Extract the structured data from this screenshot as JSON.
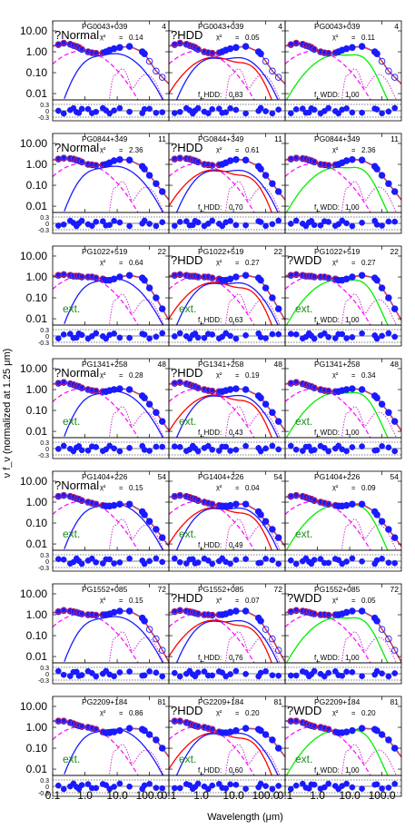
{
  "figure": {
    "y_axis_label": "ν f_ν (normalized at 1.25 μm)",
    "x_axis_label": "Wavelength (μm)",
    "x_tick_labels": [
      "0.1",
      "1.0",
      "10.0",
      "100.0"
    ],
    "y_tick_labels": [
      "10.00",
      "1.00",
      "0.10",
      "0.01"
    ],
    "residual_tick_labels": [
      "0.3",
      "0",
      "-0.3"
    ],
    "column_labels": [
      "?Normal",
      "?HDD",
      "?WDD"
    ],
    "ext_label": "ext.",
    "fraction_labels": [
      "f_HDD:",
      "f_WDD:"
    ]
  },
  "colors": {
    "observed": "#1a1aff",
    "model_total": "#7070c0",
    "template_fit": "#ff2a2a",
    "stellar": "#ff00ff",
    "disk_hdd": "#1a1aff",
    "disk_red": "#ff0000",
    "disk_wdd": "#00ee00",
    "pah": "#cc33cc",
    "ext_text": "#1f8a1f"
  },
  "chart_data": {
    "type": "scatter",
    "xlabel": "Wavelength (μm)",
    "ylabel": "ν f_ν (normalized at 1.25 μm)",
    "x_scale": "log",
    "y_scale": "log",
    "xlim": [
      0.1,
      400
    ],
    "ylim": [
      0.005,
      30
    ],
    "residual_ylim": [
      -0.5,
      0.5
    ],
    "x_obs": [
      0.15,
      0.22,
      0.35,
      0.44,
      0.55,
      0.65,
      0.8,
      1.25,
      1.65,
      2.2,
      3.6,
      4.5,
      5.8,
      8.0,
      12,
      24,
      60,
      70,
      100,
      160,
      250
    ],
    "rows": [
      {
        "name": "PG0043+039",
        "num": "4",
        "ext": false,
        "obs": [
          2.2,
          2.6,
          2.3,
          2.0,
          1.8,
          1.6,
          1.3,
          1.0,
          0.9,
          0.85,
          0.9,
          1.0,
          1.2,
          1.4,
          1.6,
          1.8,
          1.0,
          0.8,
          0.35,
          0.12,
          0.06
        ],
        "panels": [
          {
            "model": "?Normal",
            "chi2": "0.14",
            "frac_label": "",
            "frac": ""
          },
          {
            "model": "?HDD",
            "chi2": "0.05",
            "frac_label": "f_HDD:",
            "frac": "0.83"
          },
          {
            "model": "",
            "chi2": "0.11",
            "frac_label": "f_WDD:",
            "frac": "1.00"
          }
        ]
      },
      {
        "name": "PG0844+349",
        "num": "11",
        "ext": false,
        "obs": [
          1.8,
          2.0,
          1.9,
          1.8,
          1.6,
          1.5,
          1.3,
          1.0,
          0.95,
          0.9,
          0.95,
          1.0,
          1.2,
          1.5,
          1.7,
          1.6,
          0.8,
          0.6,
          0.3,
          0.12,
          0.05
        ],
        "panels": [
          {
            "model": "?Normal",
            "chi2": "2.36",
            "frac_label": "",
            "frac": ""
          },
          {
            "model": "?HDD",
            "chi2": "0.61",
            "frac_label": "f_HDD:",
            "frac": "0.70"
          },
          {
            "model": "",
            "chi2": "2.36",
            "frac_label": "f_WDD:",
            "frac": "1.00"
          }
        ]
      },
      {
        "name": "PG1022+519",
        "num": "22",
        "ext": true,
        "obs": [
          1.2,
          1.3,
          1.2,
          1.1,
          1.1,
          1.1,
          1.0,
          1.0,
          1.0,
          0.9,
          0.8,
          0.7,
          0.7,
          0.8,
          1.0,
          1.2,
          0.9,
          0.7,
          0.3,
          0.1,
          0.03
        ],
        "panels": [
          {
            "model": "",
            "chi2": "0.64",
            "frac_label": "",
            "frac": ""
          },
          {
            "model": "?HDD",
            "chi2": "0.27",
            "frac_label": "f_HDD:",
            "frac": "0.63"
          },
          {
            "model": "?WDD",
            "chi2": "0.27",
            "frac_label": "f_WDD:",
            "frac": "1.00"
          }
        ]
      },
      {
        "name": "PG1341+258",
        "num": "48",
        "ext": true,
        "obs": [
          2.0,
          2.2,
          1.9,
          1.7,
          1.5,
          1.4,
          1.2,
          1.0,
          0.9,
          0.85,
          0.8,
          0.8,
          0.9,
          1.0,
          1.1,
          1.0,
          0.5,
          0.4,
          0.2,
          0.08,
          0.03
        ],
        "panels": [
          {
            "model": "?Normal",
            "chi2": "0.28",
            "frac_label": "",
            "frac": ""
          },
          {
            "model": "?HDD",
            "chi2": "0.19",
            "frac_label": "f_HDD:",
            "frac": "0.43"
          },
          {
            "model": "",
            "chi2": "0.34",
            "frac_label": "f_WDD:",
            "frac": "1.00"
          }
        ]
      },
      {
        "name": "PG1404+226",
        "num": "54",
        "ext": true,
        "obs": [
          1.9,
          2.1,
          1.9,
          1.7,
          1.5,
          1.4,
          1.2,
          1.0,
          0.9,
          0.8,
          0.7,
          0.65,
          0.65,
          0.7,
          0.8,
          0.8,
          0.35,
          0.25,
          0.12,
          0.05,
          0.02
        ],
        "panels": [
          {
            "model": "?Normal",
            "chi2": "0.15",
            "frac_label": "",
            "frac": ""
          },
          {
            "model": "",
            "chi2": "0.04",
            "frac_label": "f_HDD:",
            "frac": "0.49"
          },
          {
            "model": "",
            "chi2": "0.09",
            "frac_label": "",
            "frac": ""
          }
        ]
      },
      {
        "name": "PG1552+085",
        "num": "72",
        "ext": false,
        "obs": [
          1.4,
          1.6,
          1.5,
          1.4,
          1.3,
          1.2,
          1.1,
          1.0,
          1.0,
          0.95,
          1.0,
          1.0,
          1.1,
          1.3,
          1.5,
          1.5,
          0.7,
          0.5,
          0.2,
          0.07,
          0.02
        ],
        "panels": [
          {
            "model": "",
            "chi2": "0.15",
            "frac_label": "",
            "frac": ""
          },
          {
            "model": "?HDD",
            "chi2": "0.07",
            "frac_label": "f_HDD:",
            "frac": "0.76"
          },
          {
            "model": "?WDD",
            "chi2": "0.05",
            "frac_label": "f_WDD:",
            "frac": "1.00"
          }
        ]
      },
      {
        "name": "PG2209+184",
        "num": "81",
        "ext": true,
        "obs": [
          2.0,
          2.0,
          1.7,
          1.5,
          1.3,
          1.2,
          1.1,
          1.0,
          0.9,
          0.8,
          0.6,
          0.55,
          0.55,
          0.6,
          0.7,
          0.9,
          0.8,
          0.7,
          0.45,
          0.25,
          0.1
        ],
        "panels": [
          {
            "model": "",
            "chi2": "0.86",
            "frac_label": "",
            "frac": ""
          },
          {
            "model": "?HDD",
            "chi2": "0.20",
            "frac_label": "f_HDD:",
            "frac": "0.60"
          },
          {
            "model": "?WDD",
            "chi2": "0.20",
            "frac_label": "f_WDD:",
            "frac": "1.00"
          }
        ]
      }
    ]
  }
}
